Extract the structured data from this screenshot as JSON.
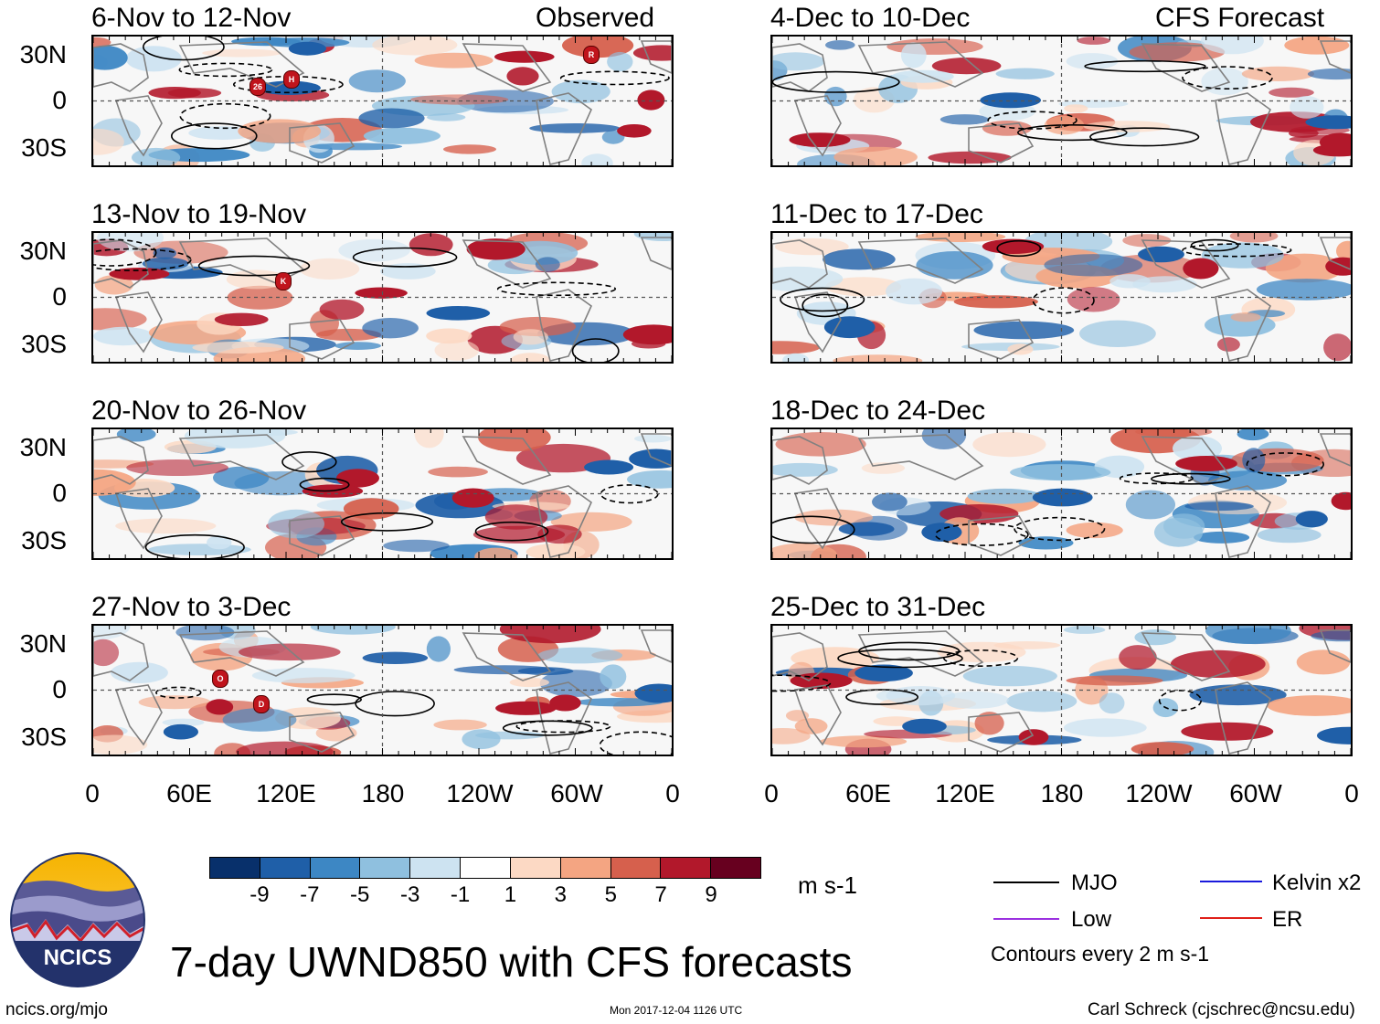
{
  "figure": {
    "main_title": "7-day UWND850 with CFS forecasts",
    "logo_text": "NCICS",
    "website": "ncics.org/mjo",
    "timestamp": "Mon 2017-12-04 1126 UTC",
    "credit": "Carl Schreck (cjschrec@ncsu.edu)"
  },
  "axes": {
    "y_labels": [
      "30N",
      "0",
      "30S"
    ],
    "x_labels": [
      "0",
      "60E",
      "120E",
      "180",
      "120W",
      "60W",
      "0"
    ]
  },
  "columns": {
    "left_tag": "Observed",
    "right_tag": "CFS Forecast"
  },
  "panels_left": [
    {
      "period": "6-Nov to 12-Nov",
      "storms": [
        "26",
        "H",
        "R"
      ]
    },
    {
      "period": "13-Nov to 19-Nov",
      "storms": [
        "K"
      ]
    },
    {
      "period": "20-Nov to 26-Nov",
      "storms": []
    },
    {
      "period": "27-Nov to 3-Dec",
      "storms": [
        "O",
        "D"
      ]
    }
  ],
  "panels_right": [
    {
      "period": "4-Dec to 10-Dec"
    },
    {
      "period": "11-Dec to 17-Dec"
    },
    {
      "period": "18-Dec to 24-Dec"
    },
    {
      "period": "25-Dec to 31-Dec"
    }
  ],
  "colorbar": {
    "unit": "m s-1",
    "labels": [
      "-9",
      "-7",
      "-5",
      "-3",
      "-1",
      "1",
      "3",
      "5",
      "7",
      "9"
    ],
    "colors": [
      "#08306b",
      "#1f5fa8",
      "#3d87c4",
      "#8fc0df",
      "#cde3f1",
      "#ffffff",
      "#fcd9c4",
      "#f4a582",
      "#d6604d",
      "#b2182b",
      "#67001f"
    ]
  },
  "legend": {
    "items": [
      {
        "label": "MJO",
        "color": "#000000"
      },
      {
        "label": "Kelvin x2",
        "color": "#1a1adc"
      },
      {
        "label": "Low",
        "color": "#9b30e0"
      },
      {
        "label": "ER",
        "color": "#e0201a"
      }
    ],
    "note": "Contours every 2 m s-1"
  }
}
